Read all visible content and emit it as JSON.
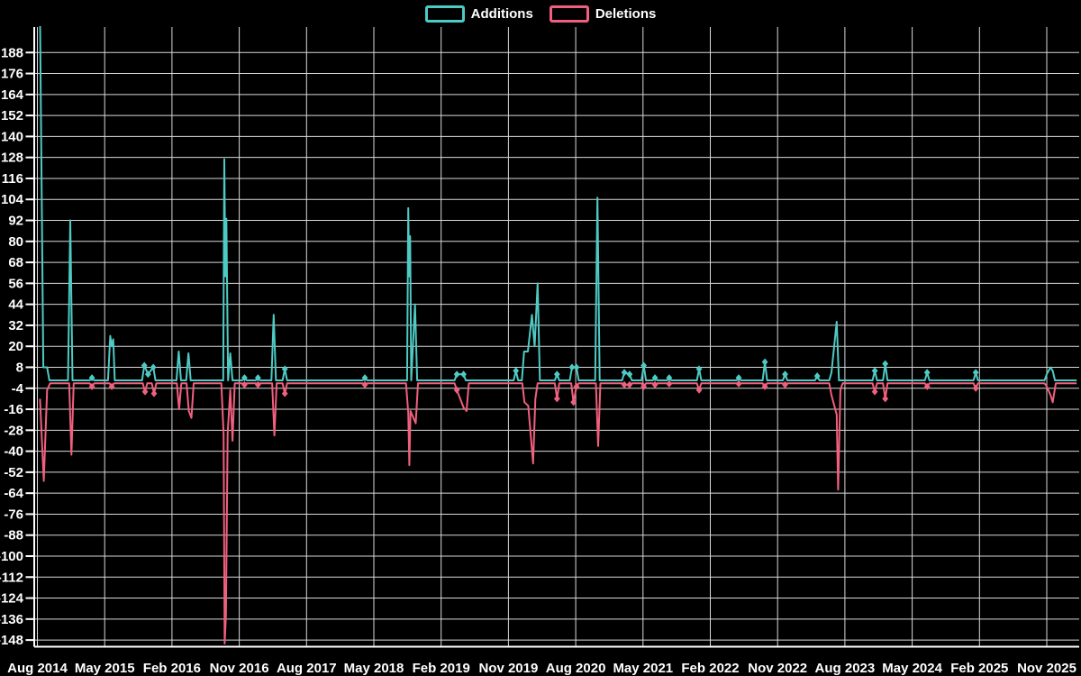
{
  "legend": {
    "additions_label": "Additions",
    "deletions_label": "Deletions"
  },
  "colors": {
    "additions": "#4ECAC4",
    "deletions": "#F0607E",
    "grid": "#FFFFFF",
    "axis": "#FFFFFF",
    "text": "#FFFFFF",
    "background": "#000000"
  },
  "chart_data": {
    "type": "line",
    "title": "",
    "xlabel": "",
    "ylabel": "",
    "legend_position": "top-center",
    "grid": true,
    "x_unit": "months since Aug 2014",
    "x_tick_step_months": 9,
    "x_tick_labels": [
      "Aug 2014",
      "May 2015",
      "Feb 2016",
      "Nov 2016",
      "Aug 2017",
      "May 2018",
      "Feb 2019",
      "Nov 2019",
      "Aug 2020",
      "May 2021",
      "Feb 2022",
      "Nov 2022",
      "Aug 2023",
      "May 2024",
      "Feb 2025",
      "Nov 2025"
    ],
    "y_ticks": [
      188,
      176,
      164,
      152,
      140,
      128,
      116,
      104,
      92,
      80,
      68,
      56,
      44,
      32,
      20,
      8,
      -4,
      -16,
      -28,
      -40,
      -52,
      -64,
      -76,
      -88,
      -100,
      -112,
      -124,
      -136,
      -148
    ],
    "ylim": [
      -153,
      202
    ],
    "xlim_months": [
      0,
      139
    ],
    "marker_shape": "diamond",
    "series": [
      {
        "name": "Additions",
        "color_key": "additions",
        "baseline": 0.5,
        "points": [
          [
            0.35,
            210
          ],
          [
            0.8,
            8
          ],
          [
            1.3,
            8
          ],
          [
            1.6,
            0.5
          ],
          [
            4.4,
            92
          ],
          [
            7.3,
            2,
            1
          ],
          [
            9.75,
            26
          ],
          [
            9.95,
            20
          ],
          [
            10.15,
            24
          ],
          [
            10.35,
            0.5
          ],
          [
            14.3,
            9,
            1
          ],
          [
            14.8,
            4,
            1
          ],
          [
            15.5,
            8,
            1
          ],
          [
            18.9,
            17
          ],
          [
            20.2,
            16
          ],
          [
            24.85,
            0.5
          ],
          [
            25.0,
            127
          ],
          [
            25.15,
            60
          ],
          [
            25.28,
            93
          ],
          [
            25.5,
            0.5
          ],
          [
            25.8,
            16
          ],
          [
            27.7,
            2,
            1
          ],
          [
            29.5,
            2,
            1
          ],
          [
            31.6,
            38
          ],
          [
            33.1,
            7,
            1
          ],
          [
            43.8,
            2,
            1
          ],
          [
            49.45,
            0.5
          ],
          [
            49.6,
            99
          ],
          [
            49.72,
            60
          ],
          [
            49.85,
            83
          ],
          [
            50.0,
            0.5
          ],
          [
            50.5,
            44
          ],
          [
            56.1,
            4,
            1
          ],
          [
            57.0,
            4,
            1
          ],
          [
            64.0,
            6,
            1
          ],
          [
            65.1,
            17
          ],
          [
            65.6,
            17
          ],
          [
            66.15,
            38
          ],
          [
            66.5,
            20
          ],
          [
            66.9,
            56
          ],
          [
            69.5,
            4,
            1
          ],
          [
            71.5,
            8,
            1
          ],
          [
            72.1,
            8,
            1
          ],
          [
            74.9,
            105
          ],
          [
            78.5,
            5,
            1
          ],
          [
            79.2,
            4,
            1
          ],
          [
            81.1,
            9,
            1
          ],
          [
            82.6,
            2,
            1
          ],
          [
            84.5,
            2,
            1
          ],
          [
            88.5,
            7,
            1
          ],
          [
            93.8,
            2,
            1
          ],
          [
            97.3,
            11,
            1
          ],
          [
            100.0,
            4,
            1
          ],
          [
            104.3,
            3,
            1
          ],
          [
            106.2,
            5
          ],
          [
            106.9,
            34
          ],
          [
            112.0,
            6,
            1
          ],
          [
            113.4,
            10,
            1
          ],
          [
            119.0,
            5,
            1
          ],
          [
            125.5,
            5,
            1
          ],
          [
            135.0,
            4
          ],
          [
            135.5,
            8
          ],
          [
            135.8,
            6
          ],
          [
            136.1,
            0.5
          ],
          [
            139.0,
            0.5
          ]
        ]
      },
      {
        "name": "Deletions",
        "color_key": "deletions",
        "baseline": -1.2,
        "points": [
          [
            0.35,
            -10
          ],
          [
            0.85,
            -57
          ],
          [
            1.3,
            -5
          ],
          [
            1.7,
            -1.2
          ],
          [
            4.55,
            -42
          ],
          [
            7.3,
            -3,
            1
          ],
          [
            9.95,
            -3,
            1
          ],
          [
            14.4,
            -6,
            1
          ],
          [
            15.6,
            -7,
            1
          ],
          [
            18.95,
            -16
          ],
          [
            20.25,
            -17
          ],
          [
            20.6,
            -21
          ],
          [
            24.9,
            -30
          ],
          [
            25.05,
            -150
          ],
          [
            25.22,
            -134
          ],
          [
            25.45,
            -30
          ],
          [
            25.8,
            -5
          ],
          [
            26.1,
            -34
          ],
          [
            26.4,
            -1.2
          ],
          [
            27.7,
            -2,
            1
          ],
          [
            29.5,
            -2,
            1
          ],
          [
            31.7,
            -31
          ],
          [
            33.1,
            -7,
            1
          ],
          [
            43.8,
            -2,
            1
          ],
          [
            49.6,
            -18
          ],
          [
            49.75,
            -48
          ],
          [
            49.9,
            -17
          ],
          [
            50.6,
            -24
          ],
          [
            56.1,
            -5,
            1
          ],
          [
            57.0,
            -15
          ],
          [
            57.4,
            -17
          ],
          [
            65.15,
            -12
          ],
          [
            65.65,
            -14
          ],
          [
            66.3,
            -47
          ],
          [
            66.6,
            -10
          ],
          [
            69.5,
            -10,
            1
          ],
          [
            71.7,
            -12,
            1
          ],
          [
            72.1,
            -3,
            1
          ],
          [
            75.0,
            -37
          ],
          [
            78.5,
            -2,
            1
          ],
          [
            79.2,
            -2,
            1
          ],
          [
            81.1,
            -3,
            1
          ],
          [
            82.6,
            -2,
            1
          ],
          [
            84.5,
            -1.5,
            1
          ],
          [
            88.5,
            -5,
            1
          ],
          [
            93.8,
            -1.5,
            1
          ],
          [
            97.3,
            -3,
            1
          ],
          [
            100.0,
            -2,
            1
          ],
          [
            106.2,
            -8
          ],
          [
            106.9,
            -19
          ],
          [
            107.1,
            -62
          ],
          [
            107.4,
            -5
          ],
          [
            112.0,
            -6,
            1
          ],
          [
            113.4,
            -10,
            1
          ],
          [
            119.0,
            -3,
            1
          ],
          [
            125.5,
            -4,
            1
          ],
          [
            135.0,
            -3
          ],
          [
            135.5,
            -8
          ],
          [
            135.8,
            -12
          ],
          [
            136.2,
            -1.2
          ],
          [
            139.0,
            -1.2
          ]
        ]
      }
    ]
  }
}
